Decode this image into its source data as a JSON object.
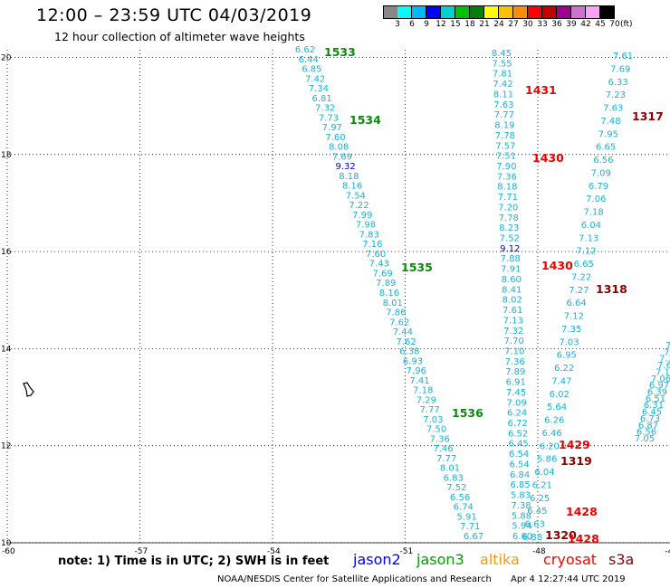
{
  "header": {
    "title": "12:00 – 23:59 UTC 04/03/2019",
    "subtitle": "12 hour collection of altimeter wave heights"
  },
  "legend": {
    "colors": [
      "#888888",
      "#00ffff",
      "#00b8ff",
      "#0000ff",
      "#00d0d0",
      "#00c000",
      "#008000",
      "#ffff00",
      "#ffc000",
      "#ff8c00",
      "#ff0000",
      "#c00000",
      "#a00090",
      "#d070d0",
      "#ffa0ff",
      "#000000"
    ],
    "levels": [
      "3",
      "6",
      "9",
      "12",
      "15",
      "18",
      "21",
      "24",
      "27",
      "30",
      "33",
      "36",
      "39",
      "42",
      "45",
      "70"
    ],
    "unit": "(ft)"
  },
  "map": {
    "x_ticks": [
      "-60",
      "-57",
      "-54",
      "-51",
      "-48",
      "-45"
    ],
    "y_ticks": [
      "10",
      "12",
      "14",
      "16",
      "18",
      "20"
    ]
  },
  "tracks": [
    {
      "pass": "1533",
      "color": "#0a8a0a",
      "values": [
        "6.62",
        "6.44",
        "6.85",
        "7.42",
        "7.34",
        "6.81",
        "7.32",
        "7.73",
        "7.97",
        "7.60",
        "8.08",
        "7.69",
        "9.32",
        "8.18",
        "8.16",
        "7.54",
        "7.22",
        "7.99",
        "7.98",
        "7.83",
        "7.16",
        "7.60",
        "7.43",
        "7.69",
        "7.89",
        "8.16",
        "8.01",
        "7.86",
        "7.62",
        "7.44",
        "7.62",
        "6.38",
        "6.93",
        "7.96",
        "7.41",
        "7.18",
        "7.29",
        "7.77",
        "7.03",
        "7.50",
        "7.36",
        "7.46",
        "7.77",
        "8.01",
        "6.83",
        "7.52",
        "6.56",
        "6.74",
        "5.91",
        "7.71",
        "6.67"
      ]
    },
    {
      "pass": "1534",
      "color": "#0a8a0a"
    },
    {
      "pass": "1535",
      "color": "#0a8a0a"
    },
    {
      "pass": "1536",
      "color": "#0a8a0a"
    },
    {
      "pass": "1431",
      "color": "#ee0000",
      "values": [
        "8.45",
        "7.55",
        "7.81",
        "7.42",
        "8.11",
        "7.63",
        "7.77",
        "8.19",
        "7.78",
        "7.57",
        "7.51",
        "7.90",
        "7.36",
        "8.18",
        "7.71",
        "7.20",
        "7.78",
        "8.23",
        "7.52",
        "9.12",
        "7.88",
        "7.91",
        "8.60",
        "8.41",
        "8.02",
        "7.61",
        "7.13",
        "7.32",
        "7.70",
        "7.10",
        "7.36",
        "7.89",
        "6.91",
        "7.45",
        "7.09",
        "6.24",
        "6.72",
        "6.52",
        "6.45",
        "6.54",
        "6.54",
        "6.84",
        "6.85",
        "5.83",
        "7.38",
        "5.88",
        "5.94",
        "6.60"
      ]
    },
    {
      "pass": "1430",
      "color": "#ee0000",
      "values": [
        "7.61",
        "7.69",
        "6.33",
        "7.23",
        "7.63",
        "7.48",
        "7.95",
        "6.65",
        "6.56",
        "7.09",
        "6.79",
        "7.06",
        "7.18",
        "6.04",
        "7.13",
        "7.12",
        "6.65",
        "7.22",
        "7.27",
        "6.64",
        "7.12",
        "7.35",
        "7.03",
        "6.95",
        "6.22",
        "7.47",
        "6.02",
        "5.64",
        "6.26",
        "6.46",
        "6.20",
        "5.86",
        "6.04",
        "6.21",
        "6.25",
        "6.45",
        "6.63",
        "6.88"
      ]
    },
    {
      "pass": "1429",
      "color": "#ee0000"
    },
    {
      "pass": "1428",
      "color": "#ee0000"
    },
    {
      "pass": "1317",
      "color": "#8b0000",
      "values": [
        "7.05",
        "6.56",
        "6.87",
        "6.73",
        "6.45",
        "6.31",
        "6.51",
        "6.39",
        "6.97",
        "7.06",
        "7.1",
        "7.6",
        "7.3",
        "7.",
        "7."
      ]
    },
    {
      "pass": "1318",
      "color": "#8b0000"
    },
    {
      "pass": "1319",
      "color": "#8b0000"
    },
    {
      "pass": "1320",
      "color": "#8b0000"
    }
  ],
  "note": "note: 1) Time is in UTC; 2) SWH is in feet",
  "satellites": [
    {
      "name": "jason2",
      "color": "#0000ff"
    },
    {
      "name": "jason3",
      "color": "#00a000"
    },
    {
      "name": "altika",
      "color": "#ff9900"
    },
    {
      "name": "cryosat",
      "color": "#ff0000"
    },
    {
      "name": "s3a",
      "color": "#8b0000"
    }
  ],
  "footer": {
    "credit": "NOAA/NESDIS Center for Satellite Applications and Research",
    "timestamp": "Apr  4 12:27:44 UTC 2019"
  }
}
